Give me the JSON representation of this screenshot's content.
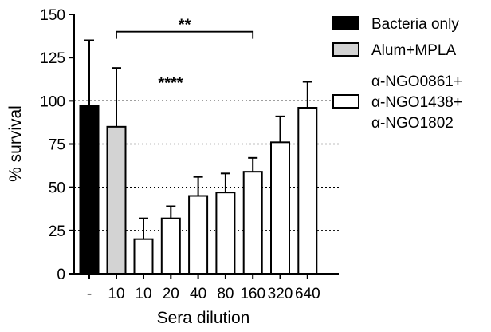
{
  "chart_data": {
    "type": "bar",
    "xlabel": "Sera dilution",
    "ylabel": "% survival",
    "ylim": [
      0,
      150
    ],
    "yticks": [
      0,
      25,
      50,
      75,
      100,
      125,
      150
    ],
    "reference_lines": [
      25,
      50,
      75,
      100
    ],
    "categories": [
      "-",
      "10",
      "10",
      "20",
      "40",
      "80",
      "160",
      "320",
      "640"
    ],
    "series": [
      {
        "name": "Bacteria only",
        "color": "#000000",
        "points": [
          {
            "index": 0,
            "value": 97,
            "error": 38
          }
        ]
      },
      {
        "name": "Alum+MPLA",
        "color": "#d3d3d3",
        "points": [
          {
            "index": 1,
            "value": 85,
            "error": 34
          }
        ]
      },
      {
        "name": "α-NGO0861+ α-NGO1438+ α-NGO1802",
        "color": "#ffffff",
        "points": [
          {
            "index": 2,
            "value": 20,
            "error": 12
          },
          {
            "index": 3,
            "value": 32,
            "error": 7
          },
          {
            "index": 4,
            "value": 45,
            "error": 11
          },
          {
            "index": 5,
            "value": 47,
            "error": 11
          },
          {
            "index": 6,
            "value": 59,
            "error": 8
          },
          {
            "index": 7,
            "value": 76,
            "error": 15
          },
          {
            "index": 8,
            "value": 96,
            "error": 15
          }
        ]
      }
    ],
    "legend": {
      "position": "right",
      "entries": [
        {
          "lines": [
            "Bacteria only"
          ],
          "color": "#000000"
        },
        {
          "lines": [
            "Alum+MPLA"
          ],
          "color": "#d3d3d3"
        },
        {
          "lines": [
            "α-NGO0861+",
            "α-NGO1438+",
            "α-NGO1802"
          ],
          "color": "#ffffff"
        }
      ]
    },
    "annotations": [
      {
        "text": "**",
        "bracket_from_index": 1,
        "bracket_to_index": 6,
        "bracket_value": 140
      },
      {
        "text": "****",
        "near_index": 2
      }
    ]
  }
}
